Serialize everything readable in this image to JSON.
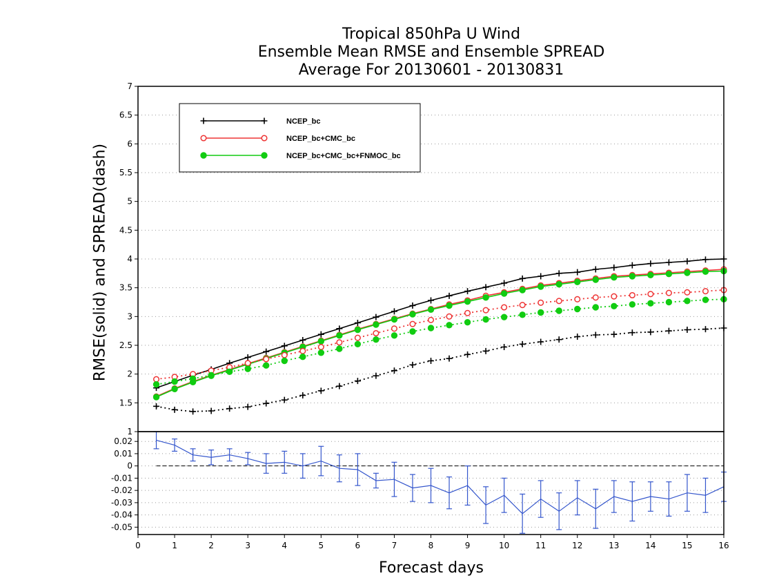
{
  "titles": [
    "Tropical 850hPa U Wind",
    "Ensemble Mean RMSE and Ensemble SPREAD",
    "Average For 20130601 - 20130831"
  ],
  "xlabel": "Forecast days",
  "ylabel": "RMSE(solid) and SPREAD(dash)",
  "colors": {
    "ncep": "#000000",
    "ncep_cmc": "#ee3333",
    "ncep_cmc_fnmoc": "#11cc11",
    "diff": "#3355cc"
  },
  "chart_data": [
    {
      "type": "line",
      "panel": "main",
      "xlim": [
        0,
        16
      ],
      "ylim": [
        1,
        7
      ],
      "yticks": [
        "1",
        "1.5",
        "2",
        "2.5",
        "3",
        "3.5",
        "4",
        "4.5",
        "5",
        "5.5",
        "6",
        "6.5",
        "7"
      ],
      "grid": true,
      "legend_position": "top-left",
      "x": [
        0.5,
        1,
        1.5,
        2,
        2.5,
        3,
        3.5,
        4,
        4.5,
        5,
        5.5,
        6,
        6.5,
        7,
        7.5,
        8,
        8.5,
        9,
        9.5,
        10,
        10.5,
        11,
        11.5,
        12,
        12.5,
        13,
        13.5,
        14,
        14.5,
        15,
        15.5,
        16
      ],
      "series": [
        {
          "name": "NCEP_bc",
          "style": "solid",
          "marker": "plus",
          "color_key": "ncep",
          "values": [
            1.76,
            1.87,
            1.98,
            2.08,
            2.19,
            2.29,
            2.39,
            2.49,
            2.59,
            2.69,
            2.79,
            2.89,
            2.99,
            3.09,
            3.19,
            3.28,
            3.36,
            3.44,
            3.51,
            3.58,
            3.66,
            3.7,
            3.75,
            3.77,
            3.82,
            3.85,
            3.89,
            3.92,
            3.94,
            3.96,
            3.99,
            4.0
          ]
        },
        {
          "name": "NCEP_bc+CMC_bc",
          "style": "solid",
          "marker": "open-circle",
          "color_key": "ncep_cmc",
          "values": [
            1.61,
            1.75,
            1.87,
            1.98,
            2.08,
            2.18,
            2.28,
            2.38,
            2.48,
            2.58,
            2.68,
            2.78,
            2.87,
            2.96,
            3.05,
            3.13,
            3.21,
            3.28,
            3.36,
            3.42,
            3.48,
            3.54,
            3.58,
            3.62,
            3.66,
            3.7,
            3.72,
            3.74,
            3.76,
            3.78,
            3.8,
            3.82
          ]
        },
        {
          "name": "NCEP_bc+CMC_bc+FNMOC_bc",
          "style": "solid",
          "marker": "filled-circle",
          "color_key": "ncep_cmc_fnmoc",
          "values": [
            1.6,
            1.74,
            1.86,
            1.97,
            2.07,
            2.17,
            2.27,
            2.37,
            2.47,
            2.57,
            2.67,
            2.77,
            2.86,
            2.95,
            3.04,
            3.12,
            3.19,
            3.26,
            3.33,
            3.4,
            3.46,
            3.52,
            3.56,
            3.6,
            3.64,
            3.68,
            3.7,
            3.72,
            3.74,
            3.76,
            3.78,
            3.79
          ]
        },
        {
          "style": "dotted",
          "marker": "plus",
          "color_key": "ncep",
          "values": [
            1.44,
            1.38,
            1.35,
            1.36,
            1.4,
            1.43,
            1.49,
            1.55,
            1.63,
            1.71,
            1.79,
            1.88,
            1.97,
            2.06,
            2.16,
            2.23,
            2.27,
            2.34,
            2.4,
            2.47,
            2.52,
            2.56,
            2.6,
            2.65,
            2.68,
            2.69,
            2.72,
            2.73,
            2.75,
            2.77,
            2.78,
            2.8
          ]
        },
        {
          "style": "dotted",
          "marker": "open-circle",
          "color_key": "ncep_cmc",
          "values": [
            1.91,
            1.95,
            2.0,
            2.06,
            2.12,
            2.19,
            2.26,
            2.33,
            2.4,
            2.47,
            2.55,
            2.63,
            2.71,
            2.79,
            2.87,
            2.94,
            3.0,
            3.06,
            3.11,
            3.16,
            3.2,
            3.24,
            3.27,
            3.3,
            3.33,
            3.35,
            3.37,
            3.39,
            3.41,
            3.42,
            3.44,
            3.46
          ]
        },
        {
          "style": "dotted",
          "marker": "filled-circle",
          "color_key": "ncep_cmc_fnmoc",
          "values": [
            1.82,
            1.87,
            1.92,
            1.98,
            2.04,
            2.09,
            2.15,
            2.23,
            2.3,
            2.37,
            2.44,
            2.52,
            2.6,
            2.67,
            2.74,
            2.8,
            2.85,
            2.9,
            2.95,
            2.99,
            3.03,
            3.07,
            3.1,
            3.13,
            3.16,
            3.18,
            3.21,
            3.23,
            3.25,
            3.27,
            3.29,
            3.3
          ]
        }
      ]
    },
    {
      "type": "line",
      "panel": "difference",
      "xlim": [
        0,
        16
      ],
      "ylim": [
        -0.056,
        0.028
      ],
      "yticks": [
        "0.02",
        "0.01",
        "0",
        "-0.01",
        "-0.02",
        "-0.03",
        "-0.04",
        "-0.05"
      ],
      "xticks": [
        "0",
        "1",
        "2",
        "3",
        "4",
        "5",
        "6",
        "7",
        "8",
        "9",
        "10",
        "11",
        "12",
        "13",
        "14",
        "15",
        "16"
      ],
      "grid": true,
      "x": [
        0.5,
        1,
        1.5,
        2,
        2.5,
        3,
        3.5,
        4,
        4.5,
        5,
        5.5,
        6,
        6.5,
        7,
        7.5,
        8,
        8.5,
        9,
        9.5,
        10,
        10.5,
        11,
        11.5,
        12,
        12.5,
        13,
        13.5,
        14,
        14.5,
        15,
        15.5,
        16
      ],
      "series": [
        {
          "style": "solid",
          "marker": "error-bar",
          "color_key": "diff",
          "values": [
            0.021,
            0.017,
            0.009,
            0.007,
            0.009,
            0.006,
            0.002,
            0.003,
            0.0,
            0.004,
            -0.002,
            -0.003,
            -0.012,
            -0.011,
            -0.018,
            -0.016,
            -0.022,
            -0.016,
            -0.032,
            -0.024,
            -0.039,
            -0.027,
            -0.037,
            -0.026,
            -0.035,
            -0.025,
            -0.029,
            -0.025,
            -0.027,
            -0.022,
            -0.024,
            -0.017
          ],
          "error": [
            0.007,
            0.005,
            0.005,
            0.006,
            0.005,
            0.005,
            0.008,
            0.009,
            0.01,
            0.012,
            0.011,
            0.013,
            0.006,
            0.014,
            0.011,
            0.014,
            0.013,
            0.016,
            0.015,
            0.014,
            0.016,
            0.015,
            0.015,
            0.014,
            0.016,
            0.013,
            0.016,
            0.012,
            0.014,
            0.015,
            0.014,
            0.012
          ]
        }
      ]
    }
  ]
}
